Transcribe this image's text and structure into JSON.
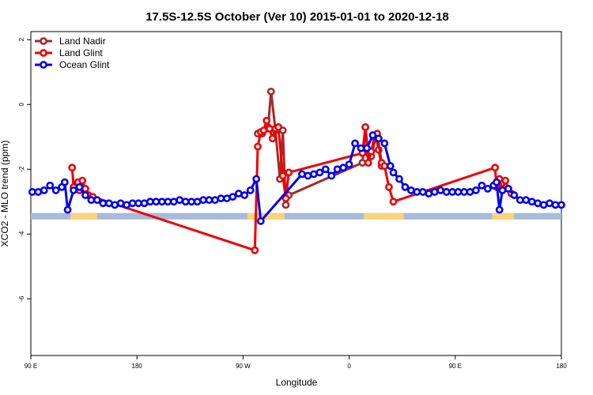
{
  "chart_data": {
    "type": "line",
    "title": "17.5S-12.5S October (Ver 10)   2015-01-01 to 2020-12-18",
    "xlabel": "Longitude",
    "ylabel": "XCO2 - MLO trend (ppm)",
    "xlim": [
      90,
      450
    ],
    "ylim": [
      -7.75,
      2.25
    ],
    "x_ticks": [
      {
        "value": 90,
        "label": "90 E"
      },
      {
        "value": 162,
        "label": "180"
      },
      {
        "value": 234,
        "label": "90 W"
      },
      {
        "value": 306,
        "label": "0"
      },
      {
        "value": 378,
        "label": "90 E"
      },
      {
        "value": 450,
        "label": "180"
      }
    ],
    "y_ticks": [
      2,
      0,
      -2,
      -4,
      -6
    ],
    "band": {
      "y_range": [
        -3.55,
        -3.35
      ],
      "color": "#a7bbdb",
      "land_color": "#fad47a",
      "land_segments": [
        [
          117,
          120
        ],
        [
          120,
          132
        ],
        [
          132,
          135
        ],
        [
          237,
          262
        ],
        [
          316,
          330
        ],
        [
          330,
          340
        ],
        [
          340,
          343
        ],
        [
          403,
          406
        ],
        [
          406,
          413
        ],
        [
          413,
          418
        ]
      ]
    },
    "legend": {
      "position": "top-left"
    },
    "series": [
      {
        "name": "Land Nadir",
        "color": "#a52a2a",
        "points": [
          [
            244,
            -0.9
          ],
          [
            247,
            -0.9
          ],
          [
            251,
            -0.7
          ],
          [
            253,
            0.4
          ],
          [
            256,
            -0.8
          ],
          [
            259,
            -2.3
          ],
          [
            261,
            -0.8
          ],
          [
            263,
            -3.1
          ],
          [
            265,
            -2.8
          ],
          [
            315,
            -1.8
          ],
          [
            317,
            -0.7
          ],
          [
            319,
            -1.5
          ],
          [
            321,
            -1.6
          ],
          [
            324,
            -1.0
          ],
          [
            326,
            -1.4
          ],
          [
            328,
            -1.9
          ]
        ]
      },
      {
        "name": "Land Glint",
        "color": "#ee0000",
        "points": [
          [
            118,
            -1.95
          ],
          [
            119,
            -2.55
          ],
          [
            122,
            -2.4
          ],
          [
            123,
            -2.65
          ],
          [
            125,
            -2.35
          ],
          [
            127,
            -2.6
          ],
          [
            129,
            -2.8
          ],
          [
            132,
            -2.85
          ],
          [
            242,
            -4.5
          ],
          [
            244,
            -1.3
          ],
          [
            246,
            -0.85
          ],
          [
            248,
            -0.8
          ],
          [
            250,
            -0.5
          ],
          [
            252,
            -0.75
          ],
          [
            254,
            -1.05
          ],
          [
            256,
            -0.75
          ],
          [
            258,
            -0.7
          ],
          [
            261,
            -2.2
          ],
          [
            263,
            -2.9
          ],
          [
            265,
            -2.1
          ],
          [
            315,
            -1.5
          ],
          [
            317,
            -0.7
          ],
          [
            319,
            -1.8
          ],
          [
            321,
            -1.45
          ],
          [
            323,
            -1.0
          ],
          [
            325,
            -0.9
          ],
          [
            328,
            -1.8
          ],
          [
            330,
            -1.9
          ],
          [
            333,
            -2.55
          ],
          [
            336,
            -3.0
          ],
          [
            405,
            -1.95
          ],
          [
            406,
            -2.55
          ],
          [
            408,
            -2.3
          ],
          [
            410,
            -2.65
          ],
          [
            412,
            -2.35
          ],
          [
            414,
            -2.6
          ],
          [
            416,
            -2.75
          ]
        ]
      },
      {
        "name": "Ocean Glint",
        "color": "#0000ee",
        "points": [
          [
            91,
            -2.7
          ],
          [
            95,
            -2.7
          ],
          [
            99,
            -2.65
          ],
          [
            103,
            -2.5
          ],
          [
            107,
            -2.65
          ],
          [
            111,
            -2.55
          ],
          [
            113,
            -2.4
          ],
          [
            115,
            -3.25
          ],
          [
            119,
            -2.65
          ],
          [
            123,
            -2.55
          ],
          [
            127,
            -2.8
          ],
          [
            131,
            -2.95
          ],
          [
            135,
            -2.95
          ],
          [
            139,
            -3.05
          ],
          [
            143,
            -3.05
          ],
          [
            147,
            -3.1
          ],
          [
            151,
            -3.05
          ],
          [
            155,
            -3.1
          ],
          [
            159,
            -3.05
          ],
          [
            163,
            -3.05
          ],
          [
            167,
            -3.05
          ],
          [
            171,
            -3.0
          ],
          [
            175,
            -3.0
          ],
          [
            179,
            -3.0
          ],
          [
            183,
            -3.0
          ],
          [
            187,
            -3.0
          ],
          [
            191,
            -2.95
          ],
          [
            195,
            -3.0
          ],
          [
            199,
            -3.0
          ],
          [
            203,
            -3.0
          ],
          [
            207,
            -2.95
          ],
          [
            211,
            -2.95
          ],
          [
            215,
            -2.95
          ],
          [
            219,
            -2.9
          ],
          [
            223,
            -2.9
          ],
          [
            227,
            -2.85
          ],
          [
            231,
            -2.75
          ],
          [
            235,
            -2.8
          ],
          [
            239,
            -2.65
          ],
          [
            243,
            -2.3
          ],
          [
            246,
            -3.6
          ],
          [
            274,
            -2.15
          ],
          [
            278,
            -2.2
          ],
          [
            282,
            -2.15
          ],
          [
            286,
            -2.1
          ],
          [
            290,
            -2.0
          ],
          [
            294,
            -2.2
          ],
          [
            298,
            -2.0
          ],
          [
            302,
            -1.95
          ],
          [
            306,
            -1.85
          ],
          [
            310,
            -1.2
          ],
          [
            314,
            -1.35
          ],
          [
            318,
            -1.35
          ],
          [
            322,
            -0.95
          ],
          [
            326,
            -1.05
          ],
          [
            330,
            -1.2
          ],
          [
            334,
            -1.9
          ],
          [
            336,
            -2.1
          ],
          [
            340,
            -2.3
          ],
          [
            344,
            -2.55
          ],
          [
            348,
            -2.65
          ],
          [
            352,
            -2.7
          ],
          [
            356,
            -2.7
          ],
          [
            360,
            -2.75
          ],
          [
            364,
            -2.7
          ],
          [
            368,
            -2.65
          ],
          [
            372,
            -2.7
          ],
          [
            376,
            -2.7
          ],
          [
            380,
            -2.7
          ],
          [
            384,
            -2.7
          ],
          [
            388,
            -2.7
          ],
          [
            392,
            -2.65
          ],
          [
            396,
            -2.5
          ],
          [
            400,
            -2.6
          ],
          [
            404,
            -2.5
          ],
          [
            406,
            -2.4
          ],
          [
            408,
            -3.25
          ],
          [
            410,
            -2.65
          ],
          [
            414,
            -2.6
          ],
          [
            418,
            -2.8
          ],
          [
            422,
            -2.95
          ],
          [
            426,
            -2.95
          ],
          [
            430,
            -3.0
          ],
          [
            434,
            -3.05
          ],
          [
            438,
            -3.1
          ],
          [
            442,
            -3.05
          ],
          [
            446,
            -3.1
          ],
          [
            450,
            -3.1
          ]
        ]
      }
    ]
  }
}
